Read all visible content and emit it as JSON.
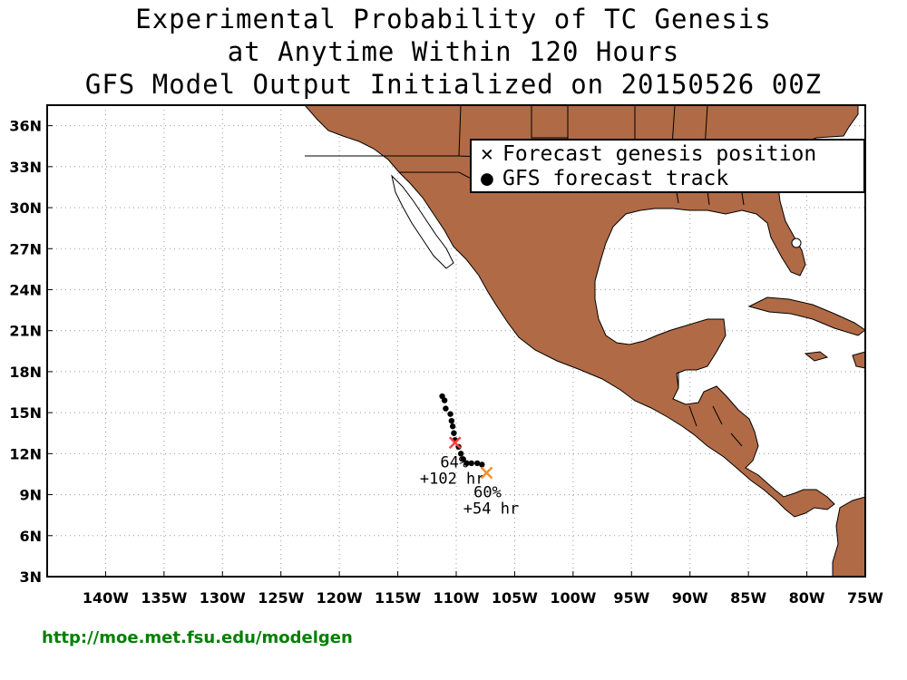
{
  "title": {
    "line1": "Experimental Probability of TC Genesis",
    "line2": "at Anytime Within 120 Hours",
    "line3": "GFS Model Output Initialized on 20150526 00Z"
  },
  "legend": {
    "genesis_label": "Forecast genesis position",
    "track_label": "GFS forecast track"
  },
  "axes": {
    "lon_ticks": [
      "140W",
      "135W",
      "130W",
      "125W",
      "120W",
      "115W",
      "110W",
      "105W",
      "100W",
      "95W",
      "90W",
      "85W",
      "80W",
      "75W"
    ],
    "lat_ticks": [
      "36N",
      "33N",
      "30N",
      "27N",
      "24N",
      "21N",
      "18N",
      "15N",
      "12N",
      "9N",
      "6N",
      "3N"
    ]
  },
  "colors": {
    "land": "#b06a45",
    "ocean": "#ffffff",
    "genesis_1": "#ff4040",
    "genesis_2": "#f09030",
    "url": "#008000"
  },
  "genesis": [
    {
      "lon": -110.1,
      "lat": 12.8,
      "prob": "64%",
      "time": "+102 hr",
      "color": "#ff4040"
    },
    {
      "lon": -107.4,
      "lat": 10.6,
      "prob": "60%",
      "time": "+54 hr",
      "color": "#f09030"
    }
  ],
  "track": [
    {
      "lon": -111.2,
      "lat": 16.2
    },
    {
      "lon": -111.0,
      "lat": 15.9
    },
    {
      "lon": -110.9,
      "lat": 15.3
    },
    {
      "lon": -110.5,
      "lat": 14.9
    },
    {
      "lon": -110.4,
      "lat": 14.4
    },
    {
      "lon": -110.3,
      "lat": 14.0
    },
    {
      "lon": -110.2,
      "lat": 13.5
    },
    {
      "lon": -110.1,
      "lat": 13.0
    },
    {
      "lon": -109.8,
      "lat": 12.5
    },
    {
      "lon": -109.6,
      "lat": 12.0
    },
    {
      "lon": -109.4,
      "lat": 11.6
    },
    {
      "lon": -109.1,
      "lat": 11.3
    },
    {
      "lon": -108.7,
      "lat": 11.3
    },
    {
      "lon": -108.2,
      "lat": 11.3
    },
    {
      "lon": -107.8,
      "lat": 11.2
    }
  ],
  "url": "http://moe.met.fsu.edu/modelgen"
}
